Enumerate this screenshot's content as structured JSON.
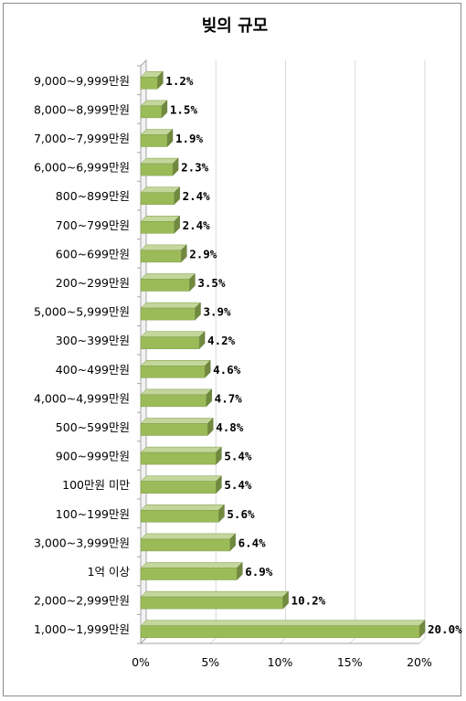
{
  "chart_data": {
    "type": "bar",
    "orientation": "horizontal",
    "title": "빚의 규모",
    "categories": [
      "9,000~9,999만원",
      "8,000~8,999만원",
      "7,000~7,999만원",
      "6,000~6,999만원",
      "800~899만원",
      "700~799만원",
      "600~699만원",
      "200~299만원",
      "5,000~5,999만원",
      "300~399만원",
      "400~499만원",
      "4,000~4,999만원",
      "500~599만원",
      "900~999만원",
      "100만원 미만",
      "100~199만원",
      "3,000~3,999만원",
      "1억 이상",
      "2,000~2,999만원",
      "1,000~1,999만원"
    ],
    "values": [
      1.2,
      1.5,
      1.9,
      2.3,
      2.4,
      2.4,
      2.9,
      3.5,
      3.9,
      4.2,
      4.6,
      4.7,
      4.8,
      5.4,
      5.4,
      5.6,
      6.4,
      6.9,
      10.2,
      20.0
    ],
    "data_labels": [
      "1.2%",
      "1.5%",
      "1.9%",
      "2.3%",
      "2.4%",
      "2.4%",
      "2.9%",
      "3.5%",
      "3.9%",
      "4.2%",
      "4.6%",
      "4.7%",
      "4.8%",
      "5.4%",
      "5.4%",
      "5.6%",
      "6.4%",
      "6.9%",
      "10.2%",
      "20.0%"
    ],
    "xlim": [
      0,
      20
    ],
    "xticks": [
      "0%",
      "5%",
      "10%",
      "15%",
      "20%"
    ],
    "xlabel": "",
    "ylabel": "",
    "grid": "vertical",
    "legend": "none",
    "colors": {
      "bar_face": "#9bbb59",
      "bar_top": "#c3d69b",
      "bar_side": "#71893f",
      "grid": "#d9d9d9"
    }
  }
}
